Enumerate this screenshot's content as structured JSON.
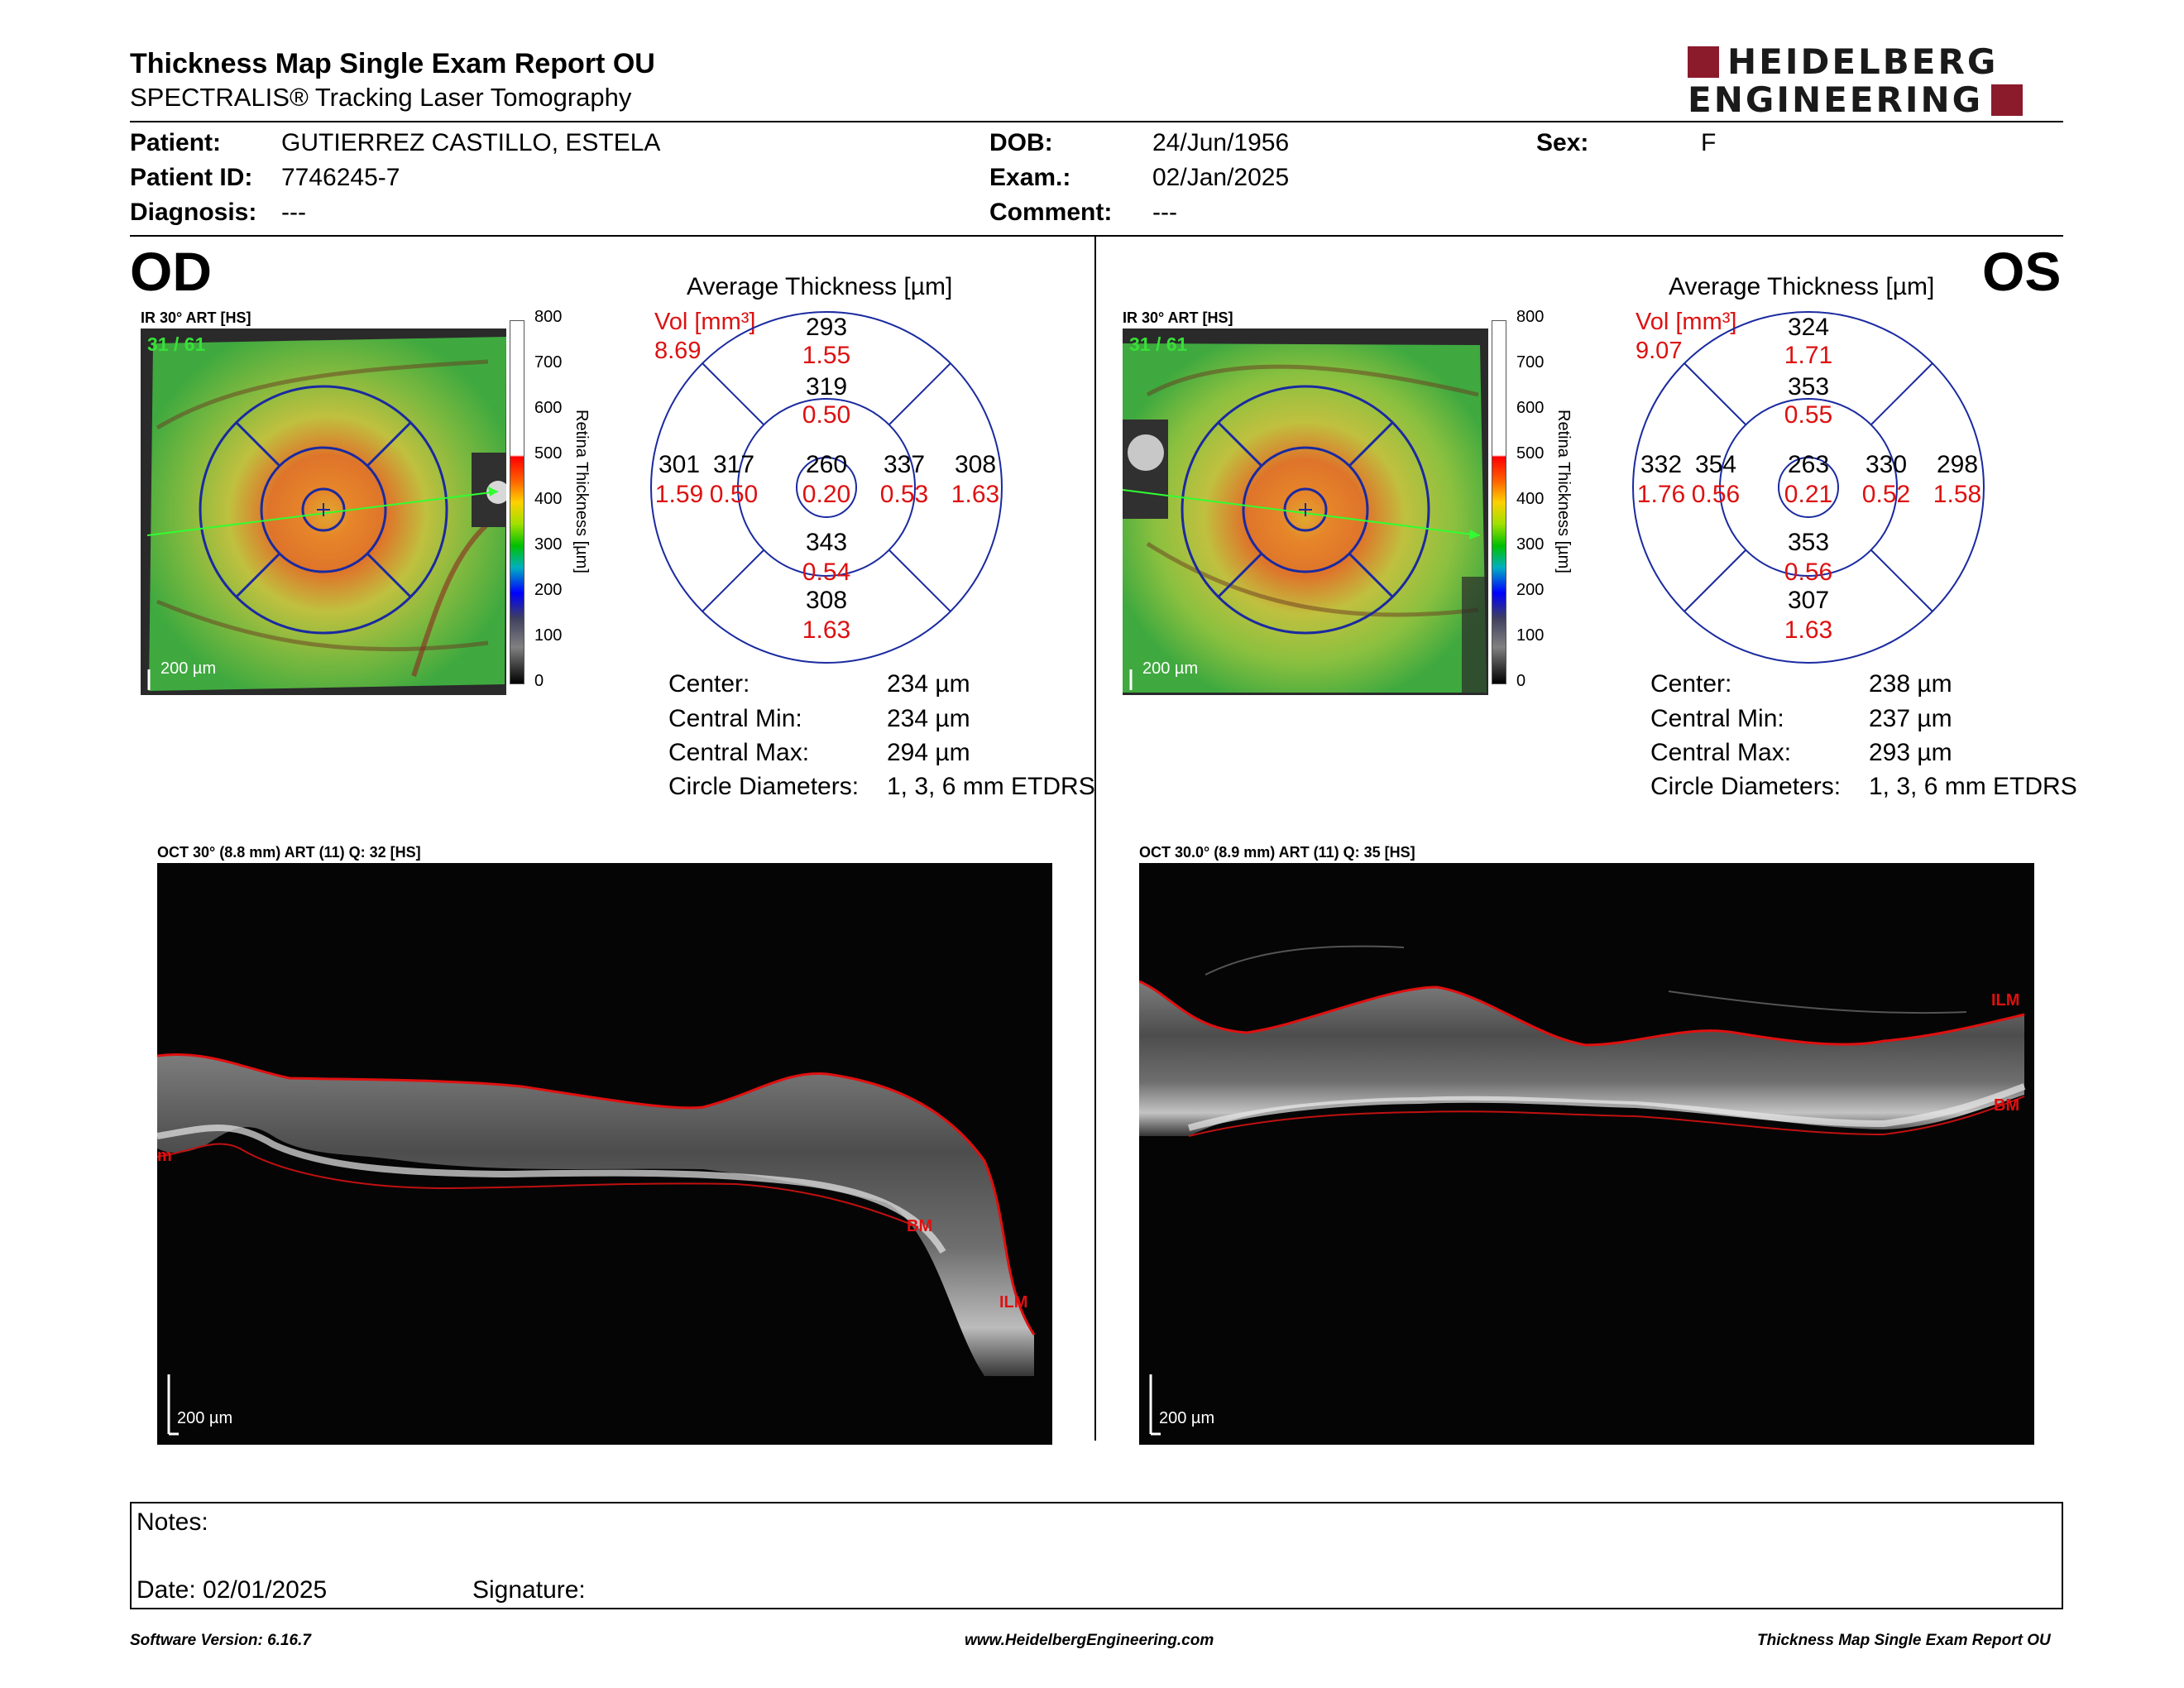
{
  "header": {
    "title": "Thickness Map Single Exam Report OU",
    "subtitle": "SPECTRALIS® Tracking Laser Tomography",
    "logo_line1": "HEIDELBERG",
    "logo_line2": "ENGINEERING",
    "logo_color": "#8b1a2b"
  },
  "patient": {
    "name_label": "Patient:",
    "name": "GUTIERREZ CASTILLO, ESTELA",
    "id_label": "Patient ID:",
    "id": "7746245-7",
    "diagnosis_label": "Diagnosis:",
    "diagnosis": "---",
    "dob_label": "DOB:",
    "dob": "24/Jun/1956",
    "exam_label": "Exam.:",
    "exam": "02/Jan/2025",
    "comment_label": "Comment:",
    "comment": "---",
    "sex_label": "Sex:",
    "sex": "F"
  },
  "od": {
    "eye": "OD",
    "fundus_caption": "IR 30° ART [HS]",
    "frame_count": "31 / 61",
    "fundus_scale": "200 µm",
    "avg_title": "Average Thickness [µm]",
    "vol_label": "Vol [mm³]",
    "total_vol": "8.69",
    "center": {
      "thk": "260",
      "vol": "0.20"
    },
    "inner": {
      "superior": {
        "thk": "319",
        "vol": "0.50"
      },
      "temporal": {
        "thk": "317",
        "vol": "0.50"
      },
      "nasal": {
        "thk": "337",
        "vol": "0.53"
      },
      "inferior": {
        "thk": "343",
        "vol": "0.54"
      }
    },
    "outer": {
      "superior": {
        "thk": "293",
        "vol": "1.55"
      },
      "temporal": {
        "thk": "301",
        "vol": "1.59"
      },
      "nasal": {
        "thk": "308",
        "vol": "1.63"
      },
      "inferior": {
        "thk": "308",
        "vol": "1.63"
      }
    },
    "stats": {
      "center_label": "Center:",
      "center": "234 µm",
      "min_label": "Central Min:",
      "min": "234 µm",
      "max_label": "Central Max:",
      "max": "294 µm",
      "diam_label": "Circle Diameters:",
      "diam": "1, 3, 6 mm ETDRS"
    },
    "oct_caption": "OCT 30° (8.8 mm) ART (11) Q: 32 [HS]",
    "oct_scale": "200 µm",
    "oct_labels": {
      "ilm": "ILM",
      "bm": "BM",
      "left": "m"
    }
  },
  "os": {
    "eye": "OS",
    "fundus_caption": "IR 30° ART [HS]",
    "frame_count": "31 / 61",
    "fundus_scale": "200 µm",
    "avg_title": "Average Thickness [µm]",
    "vol_label": "Vol [mm³]",
    "total_vol": "9.07",
    "center": {
      "thk": "263",
      "vol": "0.21"
    },
    "inner": {
      "superior": {
        "thk": "353",
        "vol": "0.55"
      },
      "temporal": {
        "thk": "330",
        "vol": "0.52"
      },
      "nasal": {
        "thk": "354",
        "vol": "0.56"
      },
      "inferior": {
        "thk": "353",
        "vol": "0.56"
      }
    },
    "outer": {
      "superior": {
        "thk": "324",
        "vol": "1.71"
      },
      "temporal": {
        "thk": "298",
        "vol": "1.58"
      },
      "nasal": {
        "thk": "332",
        "vol": "1.76"
      },
      "inferior": {
        "thk": "307",
        "vol": "1.63"
      }
    },
    "stats": {
      "center_label": "Center:",
      "center": "238 µm",
      "min_label": "Central Min:",
      "min": "237 µm",
      "max_label": "Central Max:",
      "max": "293 µm",
      "diam_label": "Circle Diameters:",
      "diam": "1, 3, 6 mm ETDRS"
    },
    "oct_caption": "OCT 30.0° (8.9 mm) ART (11) Q: 35 [HS]",
    "oct_scale": "200 µm",
    "oct_labels": {
      "ilm": "ILM",
      "bm": "BM"
    }
  },
  "colorbar": {
    "ticks": [
      "800",
      "700",
      "600",
      "500",
      "400",
      "300",
      "200",
      "100",
      "0"
    ],
    "title": "Retina Thickness [µm]"
  },
  "notes": {
    "notes_label": "Notes:",
    "date_label": "Date: 02/01/2025",
    "signature_label": "Signature:"
  },
  "footer": {
    "software": "Software Version: 6.16.7",
    "website": "www.HeidelbergEngineering.com",
    "report": "Thickness Map Single Exam Report OU"
  }
}
